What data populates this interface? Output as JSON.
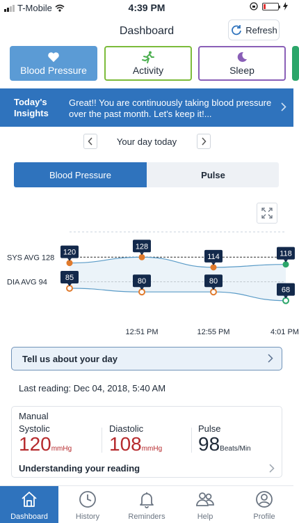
{
  "status_bar": {
    "carrier": "T-Mobile",
    "time": "4:39 PM"
  },
  "header": {
    "title": "Dashboard",
    "refresh_label": "Refresh"
  },
  "categories": [
    {
      "label": "Blood Pressure",
      "icon": "heart-icon",
      "color": "#5b9bd5"
    },
    {
      "label": "Activity",
      "icon": "running-icon",
      "color": "#7cbb3a"
    },
    {
      "label": "Sleep",
      "icon": "moon-icon",
      "color": "#8a5fb7"
    }
  ],
  "insights": {
    "title": "Today's Insights",
    "text": "Great!! You are continuously taking blood pressure over the past month. Let's keep it!..."
  },
  "day_nav": {
    "label": "Your day today"
  },
  "segments": {
    "active": "Blood Pressure",
    "inactive": "Pulse"
  },
  "chart_data": {
    "type": "line",
    "x": [
      "",
      "12:51 PM",
      "12:55 PM",
      "4:01 PM"
    ],
    "series": [
      {
        "name": "SYS",
        "values": [
          120,
          128,
          114,
          118
        ]
      },
      {
        "name": "DIA",
        "values": [
          85,
          80,
          80,
          68
        ]
      }
    ],
    "reference_lines": [
      {
        "label": "SYS AVG 128",
        "value": 128
      },
      {
        "label": "DIA AVG 94",
        "value": 94
      }
    ],
    "ylim": [
      60,
      135
    ],
    "colors": {
      "sys_marker": "#e07a2c",
      "dia_marker": "#e07a2c",
      "latest_marker": "#2ca66a",
      "line": "#5a9bc7",
      "label_bg": "#13294b"
    }
  },
  "tell_us": {
    "label": "Tell us about your day"
  },
  "last_reading": "Last reading: Dec 04, 2018, 5:40 AM",
  "reading_card": {
    "source": "Manual",
    "systolic": {
      "label": "Systolic",
      "value": "120",
      "unit": "mmHg"
    },
    "diastolic": {
      "label": "Diastolic",
      "value": "108",
      "unit": "mmHg"
    },
    "pulse": {
      "label": "Pulse",
      "value": "98",
      "unit": "Beats/Min"
    },
    "link": "Understanding your reading"
  },
  "bottom_nav": [
    {
      "label": "Dashboard",
      "icon": "home-icon",
      "active": true
    },
    {
      "label": "History",
      "icon": "clock-icon",
      "active": false
    },
    {
      "label": "Reminders",
      "icon": "bell-icon",
      "active": false
    },
    {
      "label": "Help",
      "icon": "help-people-icon",
      "active": false
    },
    {
      "label": "Profile",
      "icon": "profile-icon",
      "active": false
    }
  ]
}
